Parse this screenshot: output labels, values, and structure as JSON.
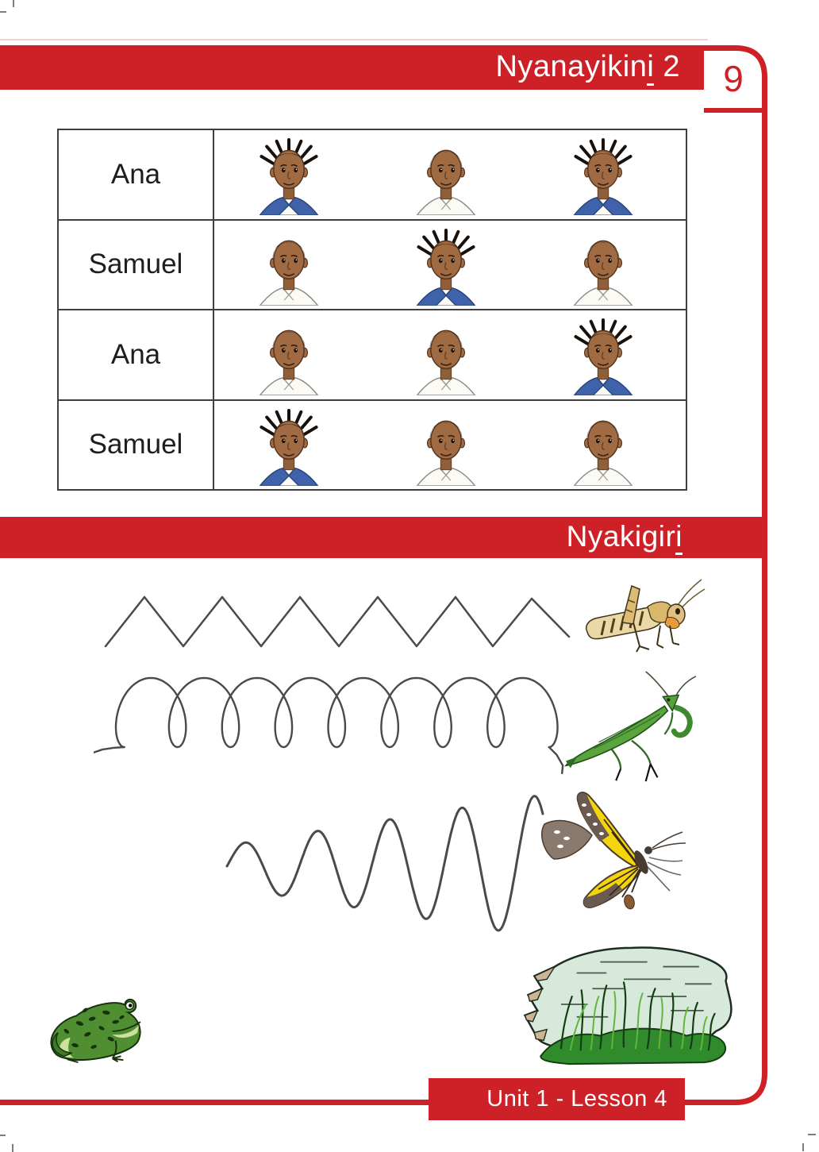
{
  "page": {
    "accent_color": "#ce2127",
    "number": "9",
    "header": {
      "title_prefix": "Nyanayikin",
      "title_underlined": "i",
      "title_suffix": " 2"
    },
    "section2": {
      "title_prefix": "Nyakigir",
      "title_underlined": "i",
      "title_suffix": ""
    },
    "footer": {
      "label": "Unit 1 - Lesson 4"
    }
  },
  "matching_table": {
    "rows": [
      {
        "name": "Ana",
        "faces": [
          "ana",
          "samuel",
          "ana"
        ]
      },
      {
        "name": "Samuel",
        "faces": [
          "samuel",
          "ana",
          "samuel"
        ]
      },
      {
        "name": "Ana",
        "faces": [
          "samuel",
          "samuel",
          "ana"
        ]
      },
      {
        "name": "Samuel",
        "faces": [
          "ana",
          "samuel",
          "samuel"
        ]
      }
    ],
    "face_legend": {
      "ana": "girl-with-braids-blue-collar",
      "samuel": "boy-short-hair-white-shirt"
    }
  },
  "tracing": {
    "lines": [
      {
        "pattern": "zigzag",
        "target": "grasshopper"
      },
      {
        "pattern": "loops",
        "target": "praying-mantis"
      },
      {
        "pattern": "wave",
        "target": "butterfly"
      }
    ],
    "decorations": [
      "frog",
      "rock-with-grass"
    ]
  }
}
